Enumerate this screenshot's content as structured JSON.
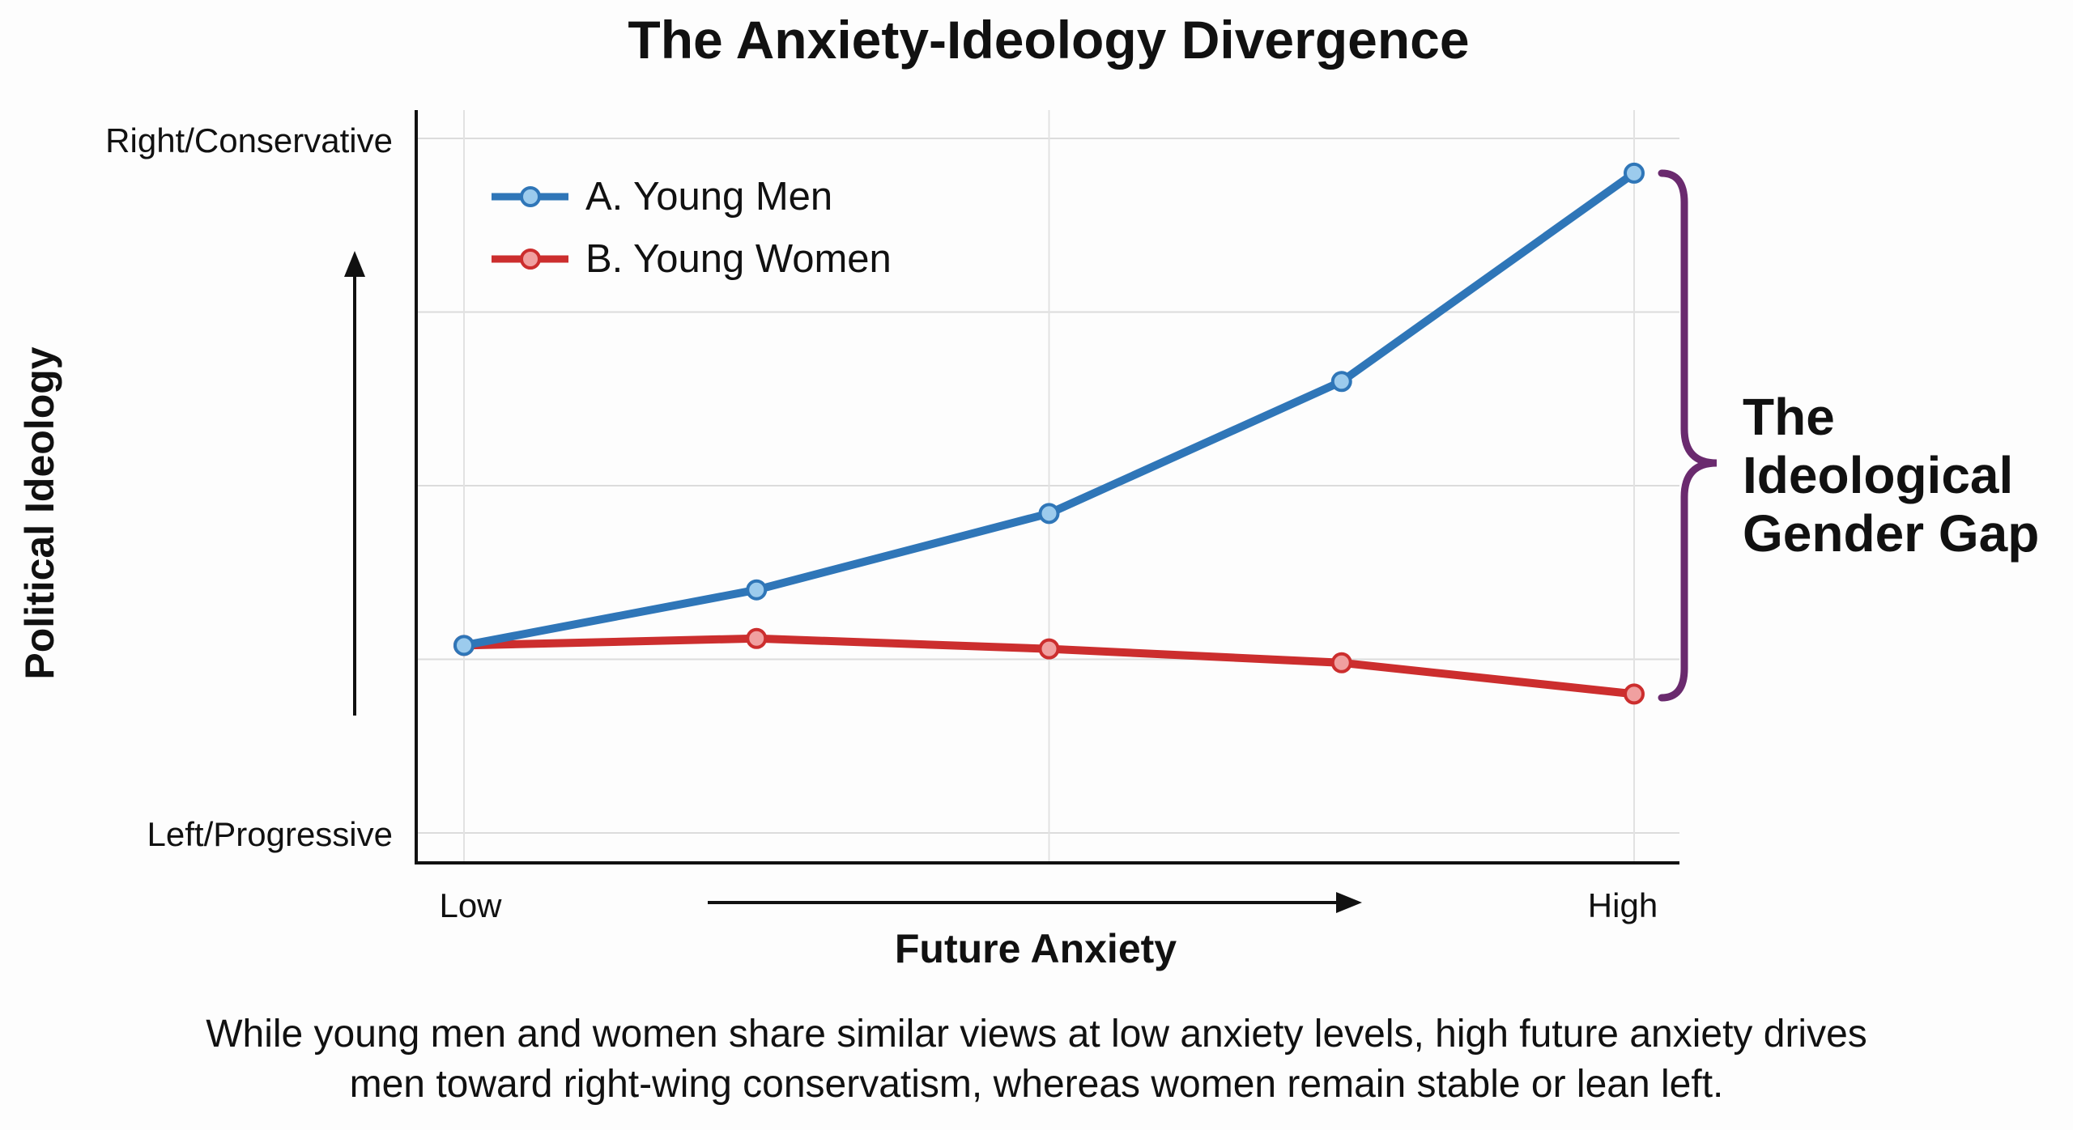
{
  "chart_data": {
    "type": "line",
    "title": "The Anxiety-Ideology Divergence",
    "xlabel": "Future Anxiety",
    "ylabel": "Political Ideology",
    "x_tick_labels": [
      "Low",
      "High"
    ],
    "y_tick_labels": [
      "Right/Conservative",
      "Left/Progressive"
    ],
    "x": [
      0,
      1,
      2,
      3,
      4
    ],
    "xlim": [
      0,
      4
    ],
    "ylim": [
      0,
      10
    ],
    "grid": true,
    "legend_placement": "top-left",
    "series": [
      {
        "name": "A. Young Men",
        "color": "#2f76b8",
        "marker_fill": "#9ccbed",
        "values": [
          2.7,
          3.5,
          4.6,
          6.5,
          9.5
        ]
      },
      {
        "name": "B. Young Women",
        "color": "#cc2e2e",
        "marker_fill": "#f0a0a0",
        "values": [
          2.7,
          2.8,
          2.65,
          2.45,
          2.0
        ]
      }
    ],
    "annotation": {
      "lines": [
        "The",
        "Ideological",
        "Gender Gap"
      ],
      "color": "#6a2a6e"
    },
    "caption": [
      "While young men and women share similar views at low anxiety levels, high future anxiety drives",
      "men toward right-wing conservatism, whereas women remain stable or lean left."
    ]
  }
}
